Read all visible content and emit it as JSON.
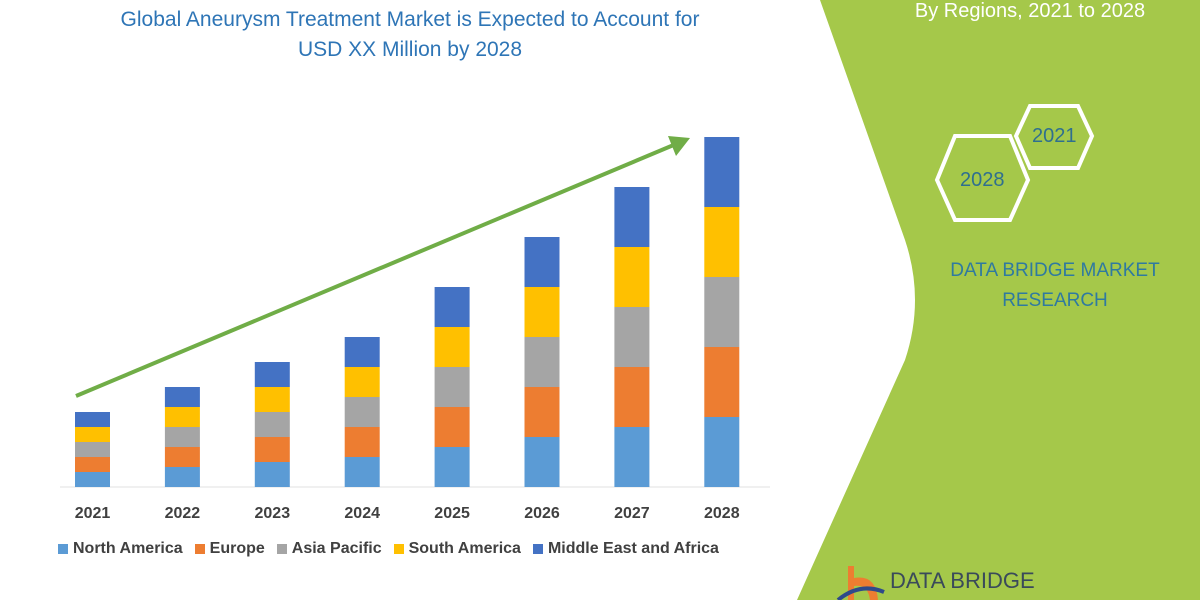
{
  "title_line1": "Global Aneurysm Treatment Market is Expected to Account for",
  "title_line2": "USD XX Million by 2028",
  "side_panel": {
    "subtitle": "By Regions, 2021 to 2028",
    "hex_years": [
      "2021",
      "2028"
    ],
    "brand_line1": "DATA BRIDGE MARKET",
    "brand_line2": "RESEARCH",
    "logo_text": "DATA BRIDGE",
    "panel_color": "#a5c84a"
  },
  "chart_data": {
    "type": "bar",
    "stacked": true,
    "categories": [
      "2021",
      "2022",
      "2023",
      "2024",
      "2025",
      "2026",
      "2027",
      "2028"
    ],
    "series": [
      {
        "name": "North America",
        "color": "#5b9bd5",
        "values": [
          15,
          20,
          25,
          30,
          40,
          50,
          60,
          70
        ]
      },
      {
        "name": "Europe",
        "color": "#ed7d31",
        "values": [
          15,
          20,
          25,
          30,
          40,
          50,
          60,
          70
        ]
      },
      {
        "name": "Asia Pacific",
        "color": "#a5a5a5",
        "values": [
          15,
          20,
          25,
          30,
          40,
          50,
          60,
          70
        ]
      },
      {
        "name": "South America",
        "color": "#ffc000",
        "values": [
          15,
          20,
          25,
          30,
          40,
          50,
          60,
          70
        ]
      },
      {
        "name": "Middle East and Africa",
        "color": "#4472c4",
        "values": [
          15,
          20,
          25,
          30,
          40,
          50,
          60,
          70
        ]
      }
    ],
    "trend_arrow_color": "#70ad47",
    "legend_position": "bottom",
    "grid": false,
    "yaxis_shown": false
  }
}
